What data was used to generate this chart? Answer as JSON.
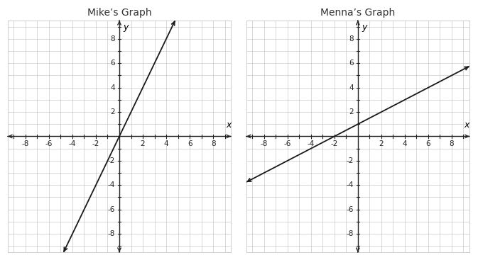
{
  "mike_title": "Mike’s Graph",
  "menna_title": "Menna’s Graph",
  "xlabel": "x",
  "ylabel": "y",
  "xlim": [
    -9.5,
    9.5
  ],
  "ylim": [
    -9.5,
    9.5
  ],
  "even_ticks": [
    -8,
    -6,
    -4,
    -2,
    2,
    4,
    6,
    8
  ],
  "grid_color": "#bbbbbb",
  "axis_color": "#222222",
  "line_color": "#1a1a1a",
  "bg_color": "#ffffff",
  "plot_bg_color": "#ffffff",
  "mike_slope": 2,
  "mike_intercept": 0,
  "menna_slope": 0.5,
  "menna_intercept": 1,
  "title_fontsize": 10,
  "label_fontsize": 9,
  "tick_fontsize": 7.5
}
